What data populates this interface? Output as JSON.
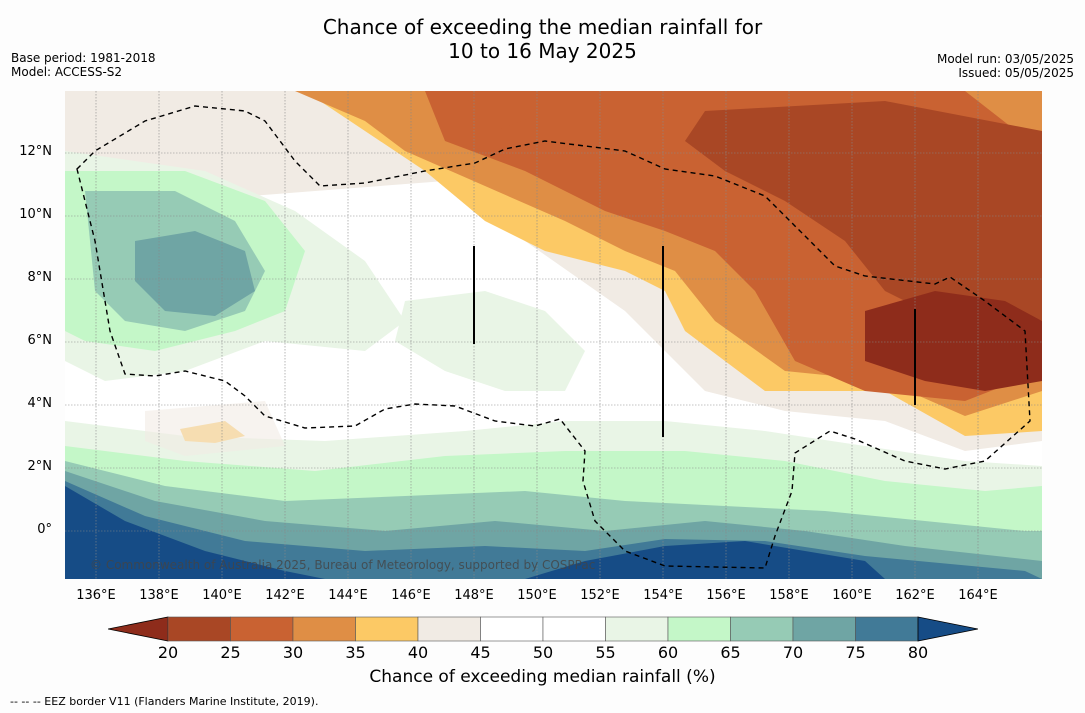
{
  "title_line1": "Chance of exceeding the median rainfall for",
  "title_line2": "10 to 16 May 2025",
  "base_period": "Base period: 1981-2018",
  "model": "Model: ACCESS-S2",
  "model_run": "Model run: 03/05/2025",
  "issued": "Issued: 05/05/2025",
  "copyright": "© Commonwealth of Australia 2025, Bureau of Meteorology, supported by COSPPac",
  "lat_labels": [
    "12°N",
    "10°N",
    "8°N",
    "6°N",
    "4°N",
    "2°N",
    "0°"
  ],
  "lon_labels": [
    "136°E",
    "138°E",
    "140°E",
    "142°E",
    "144°E",
    "146°E",
    "148°E",
    "150°E",
    "152°E",
    "154°E",
    "156°E",
    "158°E",
    "160°E",
    "162°E",
    "164°E"
  ],
  "colorbar": {
    "title": "Chance of exceeding median rainfall (%)",
    "ticks": [
      "20",
      "25",
      "30",
      "35",
      "40",
      "45",
      "50",
      "55",
      "60",
      "65",
      "70",
      "75",
      "80"
    ],
    "colors": [
      "#8e2c1b",
      "#a94725",
      "#c96232",
      "#df8e45",
      "#fcc965",
      "#f1ebe4",
      "#ffffff",
      "#ffffff",
      "#e9f5e6",
      "#c4f7c8",
      "#96cbb5",
      "#6fa5a4",
      "#417a97",
      "#164c86"
    ]
  },
  "footer": "--  --  -- EEZ border V11 (Flanders Marine Institute, 2019)."
}
